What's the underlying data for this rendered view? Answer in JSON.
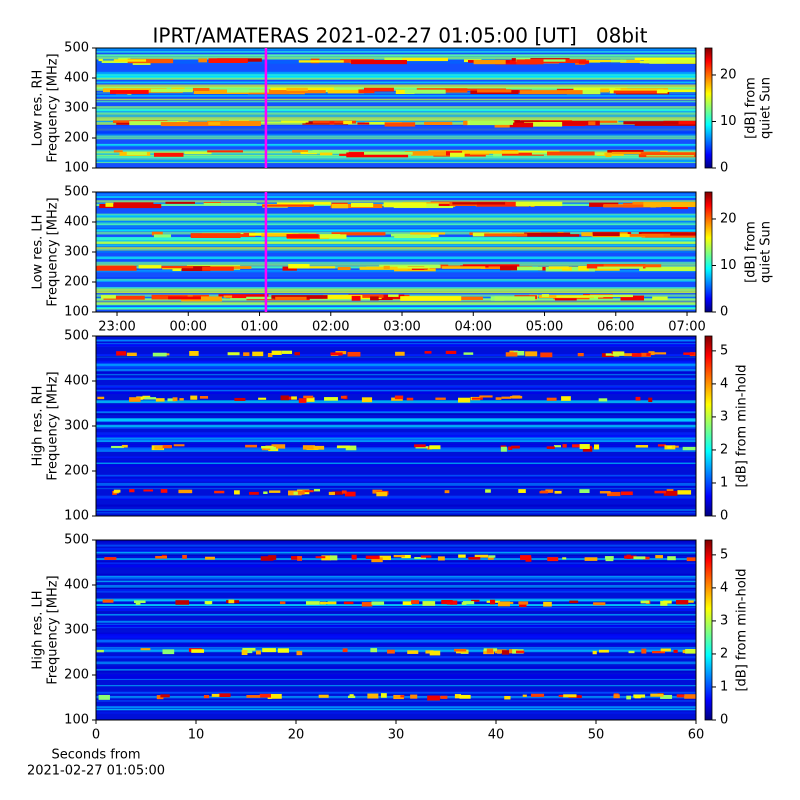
{
  "chart_data": [
    {
      "type": "heatmap",
      "title": "IPRT/AMATERAS 2021-02-27 01:05:00 [UT]   08bit",
      "ylabel": [
        "Low res. RH",
        "Frequency [MHz]"
      ],
      "xlim": [
        22.705,
        31.126
      ],
      "ylim": [
        100,
        500
      ],
      "yticks": [
        100,
        200,
        300,
        400,
        500
      ],
      "marker_x": 25.09,
      "marker_color": "#ff00ff",
      "colorbar": {
        "label": [
          "[dB] from",
          "quiet Sun"
        ],
        "lim": [
          0,
          25.8
        ],
        "ticks": [
          0,
          10,
          20
        ],
        "colormap": "jet"
      }
    },
    {
      "type": "heatmap",
      "ylabel": [
        "Low res. LH",
        "Frequency [MHz]"
      ],
      "xlim": [
        22.705,
        31.126
      ],
      "xticks": [
        {
          "value": 23,
          "label": "23:00"
        },
        {
          "value": 24,
          "label": "00:00"
        },
        {
          "value": 25,
          "label": "01:00"
        },
        {
          "value": 26,
          "label": "02:00"
        },
        {
          "value": 27,
          "label": "03:00"
        },
        {
          "value": 28,
          "label": "04:00"
        },
        {
          "value": 29,
          "label": "05:00"
        },
        {
          "value": 30,
          "label": "06:00"
        },
        {
          "value": 31,
          "label": "07:00"
        }
      ],
      "ylim": [
        100,
        500
      ],
      "yticks": [
        100,
        200,
        300,
        400,
        500
      ],
      "marker_x": 25.09,
      "marker_color": "#ff00ff",
      "colorbar": {
        "label": [
          "[dB] from",
          "quiet Sun"
        ],
        "lim": [
          0,
          25.8
        ],
        "ticks": [
          0,
          10,
          20
        ],
        "colormap": "jet"
      }
    },
    {
      "type": "heatmap",
      "ylabel": [
        "High res. RH",
        "Frequency [MHz]"
      ],
      "xlim": [
        0,
        60
      ],
      "ylim": [
        100,
        500
      ],
      "yticks": [
        100,
        200,
        300,
        400,
        500
      ],
      "colorbar": {
        "label": [
          "[dB] from min-hold"
        ],
        "lim": [
          0,
          5.45
        ],
        "ticks": [
          0,
          1,
          2,
          3,
          4,
          5
        ],
        "colormap": "jet"
      }
    },
    {
      "type": "heatmap",
      "ylabel": [
        "High res. LH",
        "Frequency [MHz]"
      ],
      "xlabel": [
        "Seconds from",
        "2021-02-27 01:05:00"
      ],
      "xlim": [
        0,
        60
      ],
      "xticks": [
        0,
        10,
        20,
        30,
        40,
        50,
        60
      ],
      "ylim": [
        100,
        500
      ],
      "yticks": [
        100,
        200,
        300,
        400,
        500
      ],
      "colorbar": {
        "label": [
          "[dB] from min-hold"
        ],
        "lim": [
          0,
          5.45
        ],
        "ticks": [
          0,
          1,
          2,
          3,
          4,
          5
        ],
        "colormap": "jet"
      }
    }
  ]
}
